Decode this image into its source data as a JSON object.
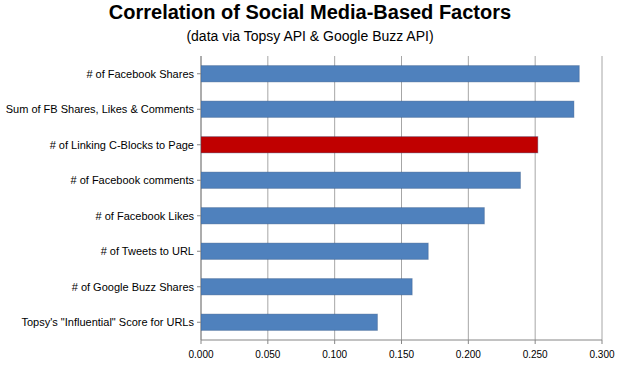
{
  "chart_data": {
    "type": "bar",
    "orientation": "horizontal",
    "title": "Correlation of Social Media-Based Factors",
    "subtitle": "(data via Topsy API & Google Buzz API)",
    "categories": [
      "# of Facebook Shares",
      "Sum of FB Shares, Likes & Comments",
      "# of Linking C-Blocks to Page",
      "# of Facebook comments",
      "# of Facebook Likes",
      "# of Tweets to URL",
      "# of Google Buzz Shares",
      "Topsy's \"Influential\" Score for URLs"
    ],
    "values": [
      0.283,
      0.279,
      0.252,
      0.239,
      0.212,
      0.17,
      0.158,
      0.132
    ],
    "colors": [
      "#4f81bd",
      "#4f81bd",
      "#c00000",
      "#4f81bd",
      "#4f81bd",
      "#4f81bd",
      "#4f81bd",
      "#4f81bd"
    ],
    "xlim": [
      0,
      0.3
    ],
    "xticks": [
      {
        "value": 0,
        "label": "0.000"
      },
      {
        "value": 0.05,
        "label": "0.050"
      },
      {
        "value": 0.1,
        "label": "0.100"
      },
      {
        "value": 0.15,
        "label": "0.150"
      },
      {
        "value": 0.2,
        "label": "0.200"
      },
      {
        "value": 0.25,
        "label": "0.250"
      },
      {
        "value": 0.3,
        "label": "0.300"
      }
    ],
    "grid": true
  }
}
